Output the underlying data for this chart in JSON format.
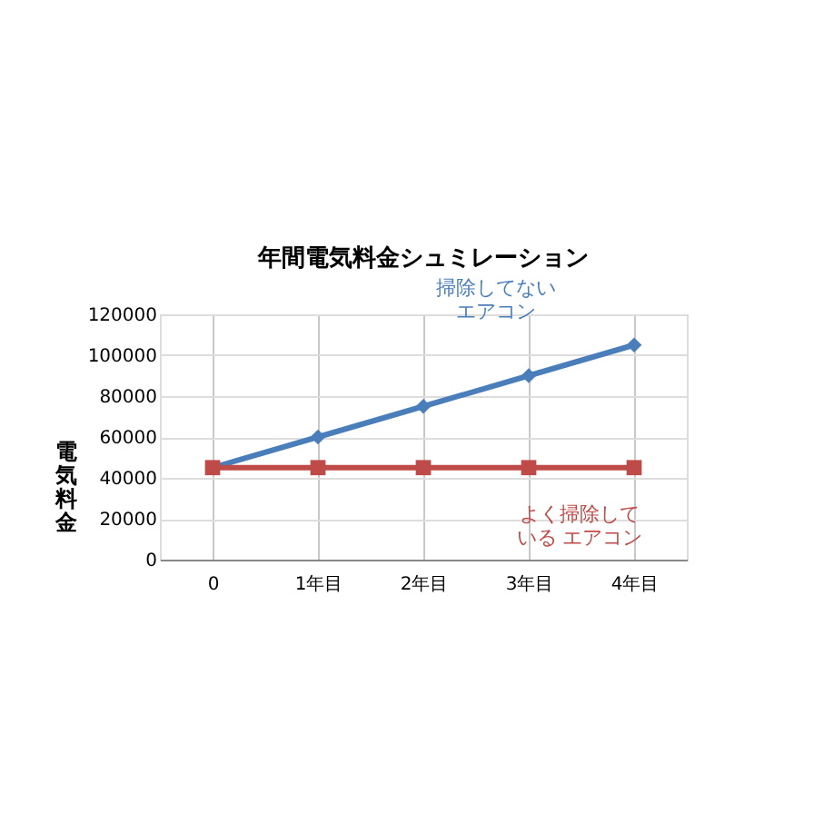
{
  "chart_data": {
    "type": "line",
    "title": "年間電気料金シュミレーション",
    "ylabel": "電気料金",
    "categories": [
      "0",
      "1年目",
      "2年目",
      "3年目",
      "4年目"
    ],
    "series": [
      {
        "name": "掃除してないエアコン",
        "color": "#4a7ebb",
        "marker": "diamond",
        "values": [
          45000,
          60000,
          75000,
          90000,
          105000
        ]
      },
      {
        "name": "よく掃除している エアコン",
        "color": "#be4b48",
        "marker": "square",
        "values": [
          45000,
          45000,
          45000,
          45000,
          45000
        ]
      }
    ],
    "ylim": [
      0,
      120000
    ],
    "yticks": [
      0,
      20000,
      40000,
      60000,
      80000,
      100000,
      120000
    ],
    "grid": true,
    "legend": false
  }
}
